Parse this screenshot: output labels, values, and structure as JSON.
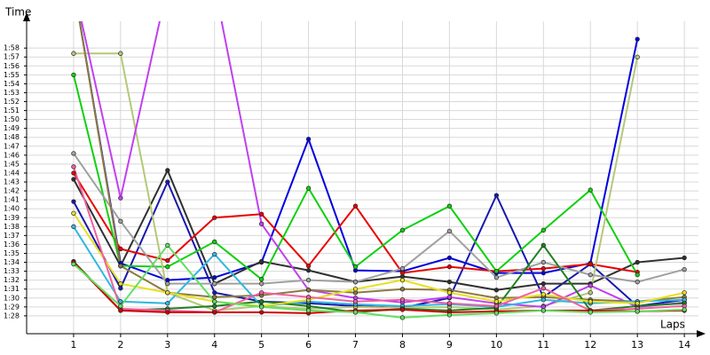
{
  "chart_data": {
    "type": "line",
    "y_label": "Time",
    "x_label": "Laps",
    "xlim": [
      0,
      14.3
    ],
    "xticks": [
      1,
      2,
      3,
      4,
      5,
      6,
      7,
      8,
      9,
      10,
      11,
      12,
      13,
      14
    ],
    "ylim": [
      86,
      121
    ],
    "yticks": [
      {
        "value": 88,
        "label": "1:28"
      },
      {
        "value": 89,
        "label": "1:29"
      },
      {
        "value": 90,
        "label": "1:30"
      },
      {
        "value": 91,
        "label": "1:31"
      },
      {
        "value": 92,
        "label": "1:32"
      },
      {
        "value": 93,
        "label": "1:33"
      },
      {
        "value": 94,
        "label": "1:34"
      },
      {
        "value": 95,
        "label": "1:35"
      },
      {
        "value": 96,
        "label": "1:36"
      },
      {
        "value": 97,
        "label": "1:37"
      },
      {
        "value": 98,
        "label": "1:38"
      },
      {
        "value": 99,
        "label": "1:39"
      },
      {
        "value": 100,
        "label": "1:40"
      },
      {
        "value": 101,
        "label": "1:41"
      },
      {
        "value": 102,
        "label": "1:42"
      },
      {
        "value": 103,
        "label": "1:43"
      },
      {
        "value": 104,
        "label": "1:44"
      },
      {
        "value": 105,
        "label": "1:45"
      },
      {
        "value": 106,
        "label": "1:46"
      },
      {
        "value": 107,
        "label": "1:47"
      },
      {
        "value": 108,
        "label": "1:48"
      },
      {
        "value": 109,
        "label": "1:49"
      },
      {
        "value": 110,
        "label": "1:50"
      },
      {
        "value": 111,
        "label": "1:51"
      },
      {
        "value": 112,
        "label": "1:52"
      },
      {
        "value": 113,
        "label": "1:53"
      },
      {
        "value": 114,
        "label": "1:54"
      },
      {
        "value": 115,
        "label": "1:55"
      },
      {
        "value": 116,
        "label": "1:56"
      },
      {
        "value": 117,
        "label": "1:57"
      },
      {
        "value": 118,
        "label": "1:58"
      }
    ],
    "grid": true,
    "x": [
      1,
      2,
      3,
      4,
      5,
      6,
      7,
      8,
      9,
      10,
      11,
      12,
      13,
      14
    ],
    "series": [
      {
        "color": "#0000e0",
        "values": [
          125,
          93.9,
          92.0,
          92.3,
          94.0,
          107.8,
          93.1,
          93.0,
          94.5,
          92.8,
          92.8,
          93.9,
          119.0,
          null
        ]
      },
      {
        "color": "#1818b0",
        "values": [
          100.8,
          91.1,
          103.0,
          90.6,
          89.6,
          89.4,
          89.1,
          88.9,
          90.0,
          101.5,
          90.1,
          93.8,
          89.1,
          89.8
        ]
      },
      {
        "color": "#303030",
        "values": [
          103.3,
          93.6,
          104.3,
          91.6,
          94.1,
          93.1,
          91.8,
          92.4,
          91.8,
          90.9,
          91.6,
          91.6,
          94.0,
          94.5
        ]
      },
      {
        "color": "#e80000",
        "values": [
          104.0,
          95.5,
          94.2,
          99.0,
          99.4,
          93.6,
          100.3,
          92.8,
          93.5,
          93.0,
          93.3,
          93.8,
          92.9,
          null
        ]
      },
      {
        "color": "#10d010",
        "values": [
          115.0,
          93.6,
          93.5,
          96.3,
          92.1,
          102.3,
          93.5,
          97.6,
          100.3,
          93.0,
          97.6,
          102.1,
          92.6,
          null
        ]
      },
      {
        "color": "#b4c878",
        "values": [
          117.4,
          117.4,
          90.6,
          88.6,
          89.1,
          88.8,
          89.0,
          88.9,
          89.0,
          88.7,
          89.1,
          90.6,
          117.0,
          null
        ]
      },
      {
        "color": "#c040f0",
        "values": [
          125,
          101.2,
          125,
          125,
          98.3,
          90.9,
          90.0,
          89.5,
          90.1,
          89.4,
          89.0,
          91.4,
          89.0,
          89.5
        ]
      },
      {
        "color": "#a0a0a0",
        "values": [
          106.2,
          98.6,
          91.6,
          91.6,
          91.6,
          92.0,
          91.8,
          93.3,
          97.5,
          92.3,
          94.0,
          92.6,
          91.8,
          93.2
        ]
      },
      {
        "color": "#8c7a40",
        "values": [
          125,
          93.6,
          90.6,
          90.1,
          90.3,
          90.9,
          90.6,
          91.0,
          90.9,
          90.0,
          90.1,
          89.8,
          89.6,
          90.1
        ]
      },
      {
        "color": "#30b8e0",
        "values": [
          98.0,
          89.6,
          89.4,
          94.9,
          89.1,
          89.6,
          89.3,
          89.1,
          89.3,
          89.0,
          89.8,
          89.4,
          89.6,
          89.8
        ]
      },
      {
        "color": "#208020",
        "values": [
          94.1,
          88.6,
          88.8,
          89.1,
          89.6,
          89.1,
          88.4,
          88.8,
          88.6,
          88.9,
          95.9,
          88.6,
          89.1,
          89.4
        ]
      },
      {
        "color": "#e8e020",
        "values": [
          99.5,
          91.6,
          90.6,
          89.6,
          89.1,
          89.8,
          91.0,
          92.0,
          90.6,
          89.6,
          90.4,
          89.6,
          89.4,
          90.6
        ]
      },
      {
        "color": "#f060a0",
        "values": [
          104.7,
          88.8,
          88.6,
          88.4,
          90.6,
          90.1,
          89.6,
          89.8,
          89.4,
          89.1,
          91.1,
          88.6,
          88.8,
          89.1
        ]
      },
      {
        "color": "#d00000",
        "values": [
          94.0,
          88.6,
          88.4,
          88.4,
          88.4,
          88.3,
          88.6,
          88.7,
          88.4,
          88.5,
          88.6,
          88.6,
          88.5,
          88.6
        ]
      },
      {
        "color": "#60e060",
        "values": [
          93.8,
          89.1,
          95.9,
          89.6,
          89.0,
          88.6,
          88.4,
          87.8,
          88.1,
          88.3,
          88.6,
          88.4,
          88.5,
          88.7
        ]
      }
    ]
  }
}
